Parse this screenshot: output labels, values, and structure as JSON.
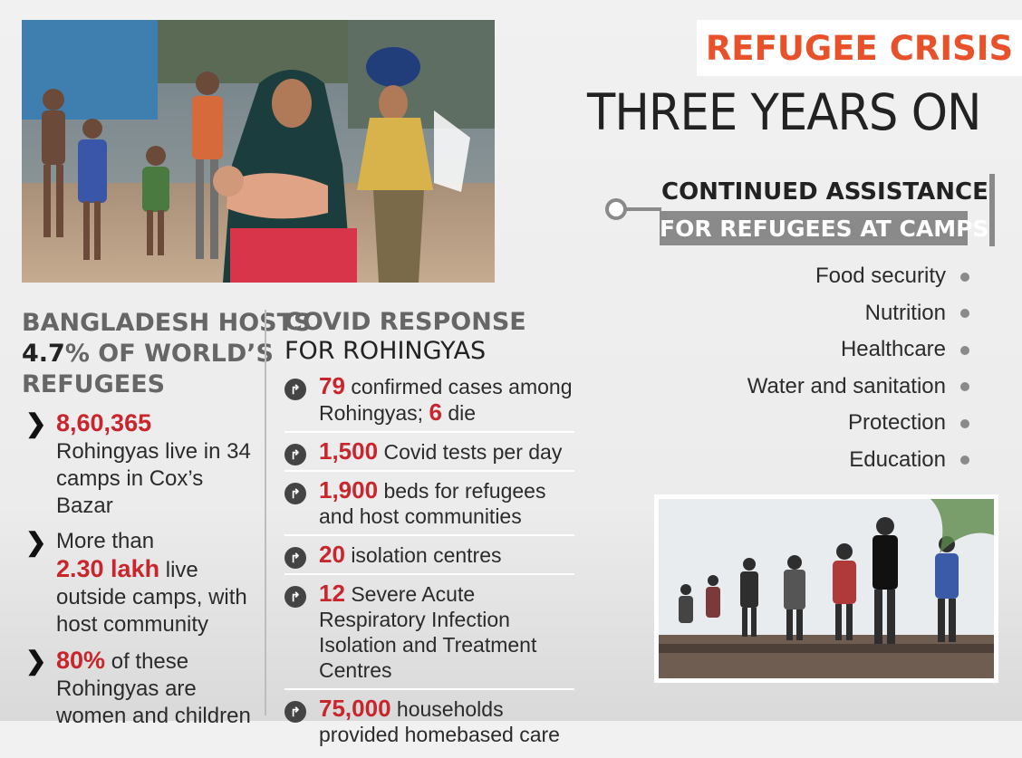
{
  "header": {
    "title": "REFUGEE CRISIS",
    "subtitle": "THREE YEARS ON"
  },
  "assistance": {
    "title_line1": "CONTINUED ASSISTANCE",
    "title_line2": "FOR REFUGEES AT CAMPS",
    "items": [
      "Food security",
      "Nutrition",
      "Healthcare",
      "Water and sanitation",
      "Protection",
      "Education"
    ]
  },
  "bangladesh": {
    "heading_line1": "BANGLADESH HOSTS",
    "heading_pct": "4.7",
    "heading_line2_rest": "% OF WORLD’S",
    "heading_line3": "REFUGEES",
    "items": [
      {
        "highlight": "8,60,365",
        "text_before": "",
        "text_after": "Rohingyas live in 34 camps in Cox’s Bazar"
      },
      {
        "highlight": "2.30 lakh",
        "text_before": "More than",
        "text_after": "live outside camps, with host community"
      },
      {
        "highlight": "80%",
        "text_before": "",
        "text_after": "of these Rohingyas are women and children"
      }
    ]
  },
  "covid": {
    "heading_line1": "COVID RESPONSE",
    "heading_line2": "FOR ROHINGYAS",
    "items": [
      {
        "highlight": "79",
        "text": "confirmed cases among Rohingyas;",
        "highlight2": "6",
        "text2": "die"
      },
      {
        "highlight": "1,500",
        "text": "Covid tests per day"
      },
      {
        "highlight": "1,900",
        "text": "beds for refugees and host communities"
      },
      {
        "highlight": "20",
        "text": "isolation centres"
      },
      {
        "highlight": "12",
        "text": "Severe Acute Respiratory Infection Isolation and Treatment Centres"
      },
      {
        "highlight": "75,000",
        "text": "households provided homebased care"
      }
    ]
  },
  "colors": {
    "accent_red": "#c8252c",
    "title_orange": "#e8522b",
    "bar_grey": "#8a8a8a"
  }
}
